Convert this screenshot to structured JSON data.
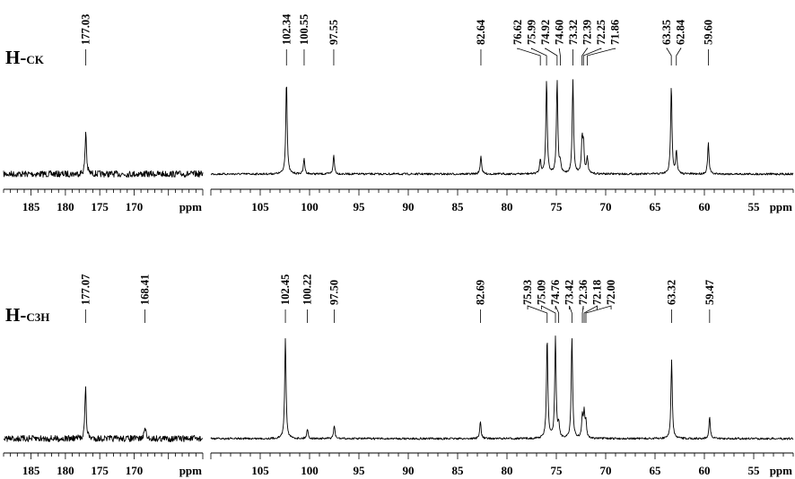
{
  "chart_data": [
    {
      "type": "line",
      "title": "",
      "name_main": "H-",
      "name_sub": "CK",
      "xlabel": "ppm",
      "x_reversed": true,
      "left_region": {
        "xlim": [
          189,
          160
        ],
        "ticks": [
          185,
          180,
          175,
          170
        ],
        "peaks": [
          {
            "ppm": 177.03,
            "height": 0.42
          }
        ]
      },
      "right_region": {
        "xlim": [
          110,
          51
        ],
        "ticks": [
          105,
          100,
          95,
          90,
          85,
          80,
          75,
          70,
          65,
          60,
          55
        ],
        "peaks": [
          {
            "ppm": 102.34,
            "height": 0.92
          },
          {
            "ppm": 100.55,
            "height": 0.15
          },
          {
            "ppm": 97.55,
            "height": 0.18
          },
          {
            "ppm": 82.64,
            "height": 0.18
          },
          {
            "ppm": 76.62,
            "height": 0.14
          },
          {
            "ppm": 75.99,
            "height": 0.92
          },
          {
            "ppm": 74.92,
            "height": 0.92
          },
          {
            "ppm": 74.6,
            "height": 0.1
          },
          {
            "ppm": 73.32,
            "height": 0.92
          },
          {
            "ppm": 72.39,
            "height": 0.32
          },
          {
            "ppm": 72.25,
            "height": 0.28
          },
          {
            "ppm": 71.86,
            "height": 0.16
          },
          {
            "ppm": 63.35,
            "height": 0.86
          },
          {
            "ppm": 62.84,
            "height": 0.22
          },
          {
            "ppm": 59.6,
            "height": 0.3
          }
        ]
      }
    },
    {
      "type": "line",
      "title": "",
      "name_main": "H-",
      "name_sub": "C3H",
      "xlabel": "ppm",
      "x_reversed": true,
      "left_region": {
        "xlim": [
          189,
          160
        ],
        "ticks": [
          185,
          180,
          175,
          170
        ],
        "peaks": [
          {
            "ppm": 177.07,
            "height": 0.47
          },
          {
            "ppm": 168.41,
            "height": 0.12
          }
        ]
      },
      "right_region": {
        "xlim": [
          110,
          51
        ],
        "ticks": [
          105,
          100,
          95,
          90,
          85,
          80,
          75,
          70,
          65,
          60,
          55
        ],
        "peaks": [
          {
            "ppm": 102.45,
            "height": 0.93
          },
          {
            "ppm": 100.22,
            "height": 0.09
          },
          {
            "ppm": 97.5,
            "height": 0.12
          },
          {
            "ppm": 82.69,
            "height": 0.16
          },
          {
            "ppm": 75.93,
            "height": 0.93
          },
          {
            "ppm": 75.09,
            "height": 0.93
          },
          {
            "ppm": 74.76,
            "height": 0.12
          },
          {
            "ppm": 73.42,
            "height": 0.93
          },
          {
            "ppm": 72.36,
            "height": 0.2
          },
          {
            "ppm": 72.18,
            "height": 0.22
          },
          {
            "ppm": 72.0,
            "height": 0.14
          },
          {
            "ppm": 63.32,
            "height": 0.72
          },
          {
            "ppm": 59.47,
            "height": 0.2
          }
        ]
      }
    }
  ]
}
